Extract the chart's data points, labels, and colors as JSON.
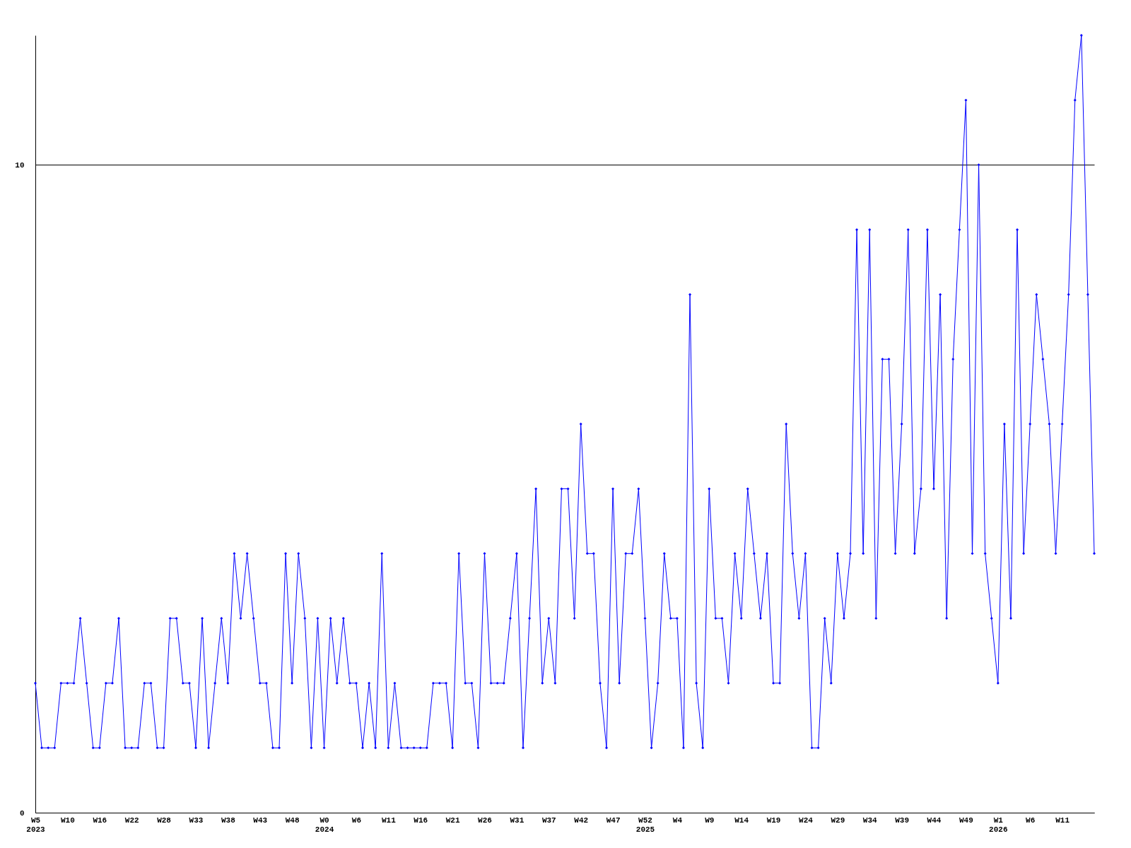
{
  "chart_data": {
    "type": "line",
    "categories": [
      "W5\n2023",
      null,
      null,
      null,
      null,
      "W10",
      null,
      null,
      null,
      null,
      "W16",
      null,
      null,
      null,
      null,
      "W22",
      null,
      null,
      null,
      null,
      "W28",
      null,
      null,
      null,
      null,
      "W33",
      null,
      null,
      null,
      null,
      "W38",
      null,
      null,
      null,
      null,
      "W43",
      null,
      null,
      null,
      null,
      "W48",
      null,
      null,
      null,
      null,
      "W0\n2024",
      null,
      null,
      null,
      null,
      "W6",
      null,
      null,
      null,
      null,
      "W11",
      null,
      null,
      null,
      null,
      "W16",
      null,
      null,
      null,
      null,
      "W21",
      null,
      null,
      null,
      null,
      "W26",
      null,
      null,
      null,
      null,
      "W31",
      null,
      null,
      null,
      null,
      "W37",
      null,
      null,
      null,
      null,
      "W42",
      null,
      null,
      null,
      null,
      "W47",
      null,
      null,
      null,
      null,
      "W52\n2025",
      null,
      null,
      null,
      null,
      "W4",
      null,
      null,
      null,
      null,
      "W9",
      null,
      null,
      null,
      null,
      "W14",
      null,
      null,
      null,
      null,
      "W19",
      null,
      null,
      null,
      null,
      "W24",
      null,
      null,
      null,
      null,
      "W29",
      null,
      null,
      null,
      null,
      "W34",
      null,
      null,
      null,
      null,
      "W39",
      null,
      null,
      null,
      null,
      "W44",
      null,
      null,
      null,
      null,
      "W49",
      null,
      null,
      null,
      null,
      "W1\n2026",
      null,
      null,
      null,
      null,
      "W6",
      null,
      null,
      null,
      null,
      "W11",
      null,
      null,
      null,
      null,
      null
    ],
    "series": [
      {
        "color": "#0000ff",
        "values": [
          2,
          1,
          1,
          1,
          2,
          2,
          2,
          3,
          2,
          1,
          1,
          2,
          2,
          3,
          1,
          1,
          1,
          2,
          2,
          1,
          1,
          3,
          3,
          2,
          2,
          1,
          3,
          1,
          2,
          3,
          2,
          4,
          3,
          4,
          3,
          2,
          2,
          1,
          1,
          4,
          2,
          4,
          3,
          1,
          3,
          1,
          3,
          2,
          3,
          2,
          2,
          1,
          2,
          1,
          4,
          1,
          2,
          1,
          1,
          1,
          1,
          1,
          2,
          2,
          2,
          1,
          4,
          2,
          2,
          1,
          4,
          2,
          2,
          2,
          3,
          4,
          1,
          3,
          5,
          2,
          3,
          2,
          5,
          5,
          3,
          6,
          4,
          4,
          2,
          1,
          5,
          2,
          4,
          4,
          5,
          3,
          1,
          2,
          4,
          3,
          3,
          1,
          8,
          2,
          1,
          5,
          3,
          3,
          2,
          4,
          3,
          5,
          4,
          3,
          4,
          2,
          2,
          6,
          4,
          3,
          4,
          1,
          1,
          3,
          2,
          4,
          3,
          4,
          9,
          4,
          9,
          3,
          7,
          7,
          4,
          6,
          9,
          4,
          5,
          9,
          5,
          8,
          3,
          7,
          9,
          11,
          4,
          10,
          4,
          3,
          2,
          6,
          3,
          9,
          4,
          6,
          8,
          7,
          6,
          4,
          6,
          8,
          11,
          12,
          8,
          4
        ]
      }
    ],
    "ylim": [
      0,
      12
    ],
    "yticks": [
      0,
      10
    ],
    "grid": "y",
    "marker": "diamond",
    "line_style": "solid",
    "legend": false
  }
}
